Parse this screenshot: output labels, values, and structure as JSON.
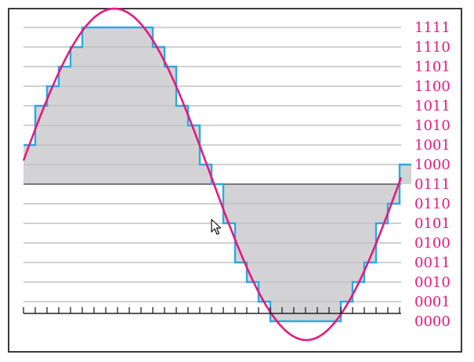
{
  "codes": [
    "1111",
    "1110",
    "1101",
    "1100",
    "1011",
    "1010",
    "1001",
    "1000",
    "0111",
    "0110",
    "0101",
    "0100",
    "0011",
    "0010",
    "0001",
    "0000"
  ],
  "signal_peak_level": 15.96,
  "colors": {
    "frame": "#3a3a3a",
    "grid": "#c2c2c2",
    "fill": "#d3d3d6",
    "staircase": "#29aae2",
    "signal": "#e5197e",
    "labels": "#e5197e",
    "axis": "#222222"
  },
  "icons": {
    "cursor": "mouse-pointer-icon"
  }
}
